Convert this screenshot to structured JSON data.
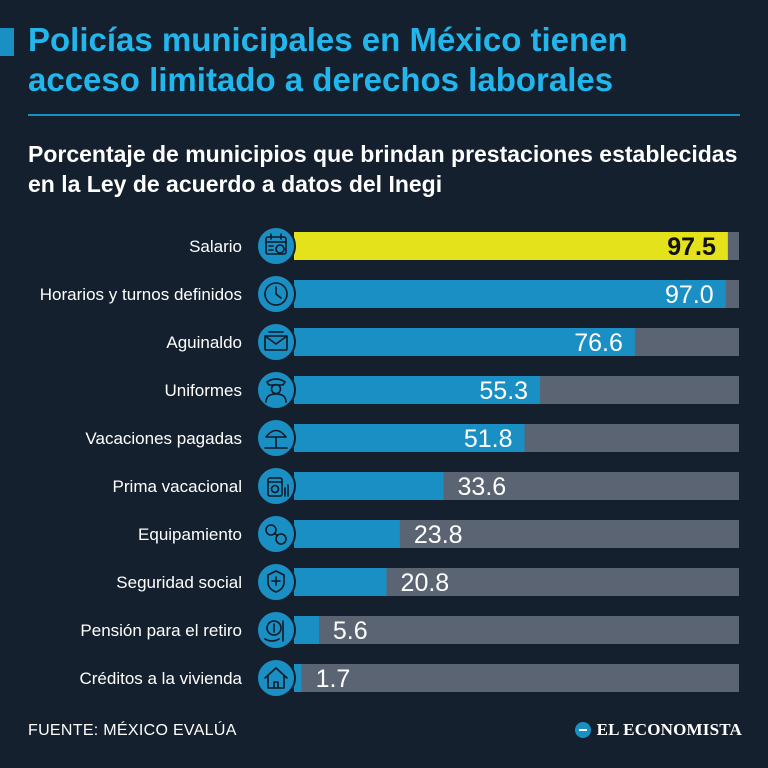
{
  "header": {
    "title": "Policías municipales en México tienen acceso limitado a derechos laborales",
    "subtitle": "Porcentaje de municipios que brindan prestaciones establecidas en la Ley de acuerdo a datos del Inegi"
  },
  "colors": {
    "background": "#14202e",
    "title": "#22b6ec",
    "bar": "#1a8fc4",
    "highlight": "#e4e21a",
    "track": "#5b6472",
    "icon_fill": "#1a8fc4",
    "icon_line": "#0e1a26"
  },
  "chart_data": {
    "type": "bar",
    "orientation": "horizontal",
    "xlim": [
      0,
      100
    ],
    "grid": false,
    "legend": "none",
    "categories": [
      "Salario",
      "Horarios y turnos definidos",
      "Aguinaldo",
      "Uniformes",
      "Vacaciones pagadas",
      "Prima vacacional",
      "Equipamiento",
      "Seguridad social",
      "Pensión para el retiro",
      "Créditos a la vivienda"
    ],
    "values": [
      97.5,
      97.0,
      76.6,
      55.3,
      51.8,
      33.6,
      23.8,
      20.8,
      5.6,
      1.7
    ],
    "value_labels": [
      "97.5",
      "97.0",
      "76.6",
      "55.3",
      "51.8",
      "33.6",
      "23.8",
      "20.8",
      "5.6",
      "1.7"
    ],
    "highlighted": "Salario",
    "icons": [
      "calendar-money-icon",
      "clock-icon",
      "envelope-icon",
      "police-officer-icon",
      "beach-umbrella-icon",
      "money-jar-icon",
      "handcuffs-icon",
      "shield-hand-icon",
      "pension-hand-icon",
      "house-icon"
    ]
  },
  "footer": {
    "source": "FUENTE: MÉXICO EVALÚA",
    "logo": "EL ECONOMISTA"
  }
}
